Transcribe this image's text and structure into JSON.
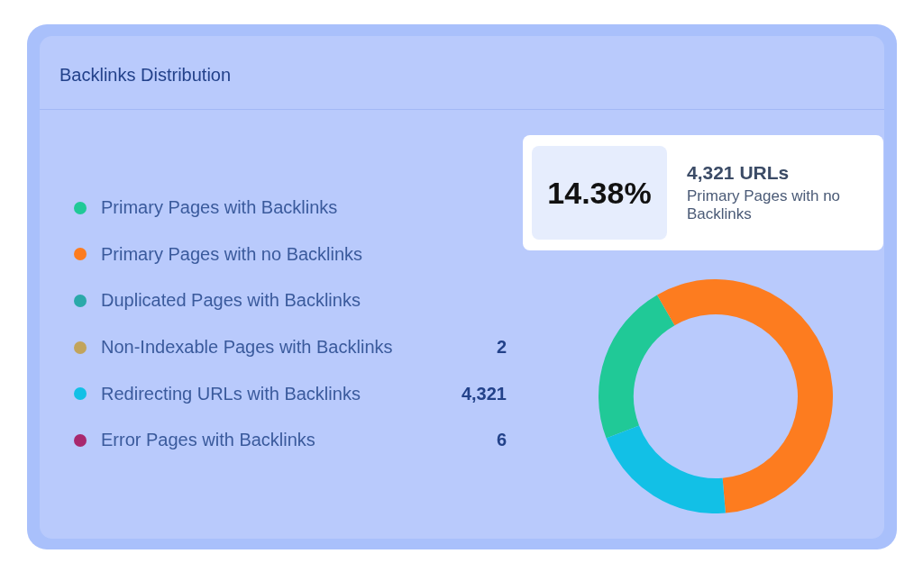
{
  "chart_data": {
    "type": "donut",
    "title": "Backlinks Distribution",
    "categories": [
      "Primary Pages with Backlinks",
      "Primary Pages with no Backlinks",
      "Duplicated Pages with Backlinks",
      "Non-Indexable Pages with Backlinks",
      "Redirecting URLs with Backlinks",
      "Error Pages with Backlinks"
    ],
    "values": [
      22.5,
      57,
      0,
      0,
      20.5,
      0
    ],
    "colors": [
      "#20c997",
      "#fd7c1f",
      "#2aa9a9",
      "#c2a45c",
      "#12c0e6",
      "#a8286e"
    ],
    "legend": "left",
    "annotations": [
      "14.38%",
      "4,321 URLs",
      "Primary Pages with no Backlinks",
      "2",
      "4,321",
      "6"
    ]
  }
}
